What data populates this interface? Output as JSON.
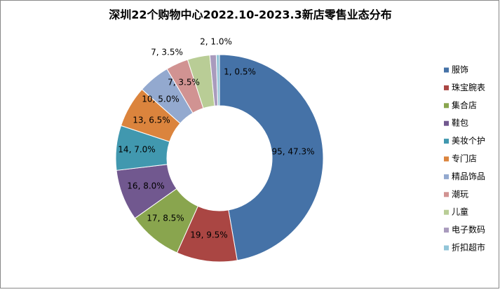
{
  "chart_data": {
    "type": "donut",
    "title": "深圳22个购物中心2022.10-2023.3新店零售业态分布",
    "categories": [
      "服饰",
      "珠宝腕表",
      "集合店",
      "鞋包",
      "美妆个护",
      "专门店",
      "精品饰品",
      "潮玩",
      "儿童",
      "电子数码",
      "折扣超市"
    ],
    "values": [
      95,
      19,
      17,
      16,
      14,
      13,
      10,
      7,
      7,
      2,
      1
    ],
    "value_labels": [
      "95, 47.3%",
      "19, 9.5%",
      "17, 8.5%",
      "16, 8.0%",
      "14, 7.0%",
      "13, 6.5%",
      "10, 5.0%",
      "7, 3.5%",
      "7, 3.5%",
      "2, 1.0%",
      "1, 0.5%"
    ],
    "colors": [
      "#4572A7",
      "#AA4643",
      "#89A54E",
      "#71588F",
      "#4198AF",
      "#DB843D",
      "#93A9CF",
      "#D19392",
      "#B9CD96",
      "#A99BBD",
      "#92C5D8"
    ],
    "legend": "right"
  }
}
